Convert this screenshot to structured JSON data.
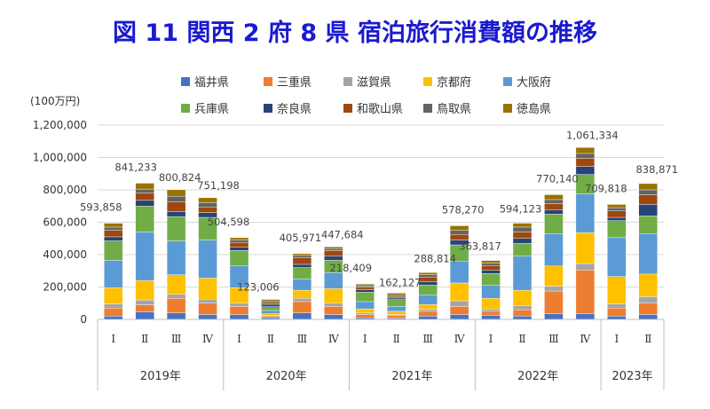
{
  "title": "図 11  関西 2 府 8 県 宿泊旅行消費額の推移",
  "colors": {
    "title": "#1a1ad0",
    "series": [
      "#4472c4",
      "#ed7d31",
      "#a5a5a5",
      "#ffc000",
      "#5b9bd5",
      "#70ad47",
      "#264478",
      "#9e480e",
      "#636363",
      "#997300"
    ]
  },
  "chart_data": {
    "type": "bar",
    "stacked": true,
    "title": "図 11  関西 2 府 8 県 宿泊旅行消費額の推移",
    "ylabel": "(100万円)",
    "ylim": [
      0,
      1200000
    ],
    "yticks": [
      "0",
      "200,000",
      "400,000",
      "600,000",
      "800,000",
      "1,000,000",
      "1,200,000"
    ],
    "ytick_values": [
      0,
      200000,
      400000,
      600000,
      800000,
      1000000,
      1200000
    ],
    "grid": true,
    "legend_position": "top",
    "categories": [
      "Ⅰ",
      "Ⅱ",
      "Ⅲ",
      "Ⅳ",
      "Ⅰ",
      "Ⅱ",
      "Ⅲ",
      "Ⅳ",
      "Ⅰ",
      "Ⅱ",
      "Ⅲ",
      "Ⅳ",
      "Ⅰ",
      "Ⅱ",
      "Ⅲ",
      "Ⅳ",
      "Ⅰ",
      "Ⅱ"
    ],
    "groups": [
      {
        "label": "2019年",
        "count": 4
      },
      {
        "label": "2020年",
        "count": 4
      },
      {
        "label": "2021年",
        "count": 4
      },
      {
        "label": "2022年",
        "count": 4
      },
      {
        "label": "2023年",
        "count": 2
      }
    ],
    "totals": [
      593858,
      841233,
      800824,
      751198,
      504598,
      123006,
      405971,
      447684,
      218409,
      162127,
      288814,
      578270,
      363817,
      594123,
      770140,
      1061334,
      709818,
      838871
    ],
    "total_labels": [
      "593,858",
      "841,233",
      "800,824",
      "751,198",
      "504,598",
      "123,006",
      "405,971",
      "447,684",
      "218,409",
      "162,127",
      "288,814",
      "578,270",
      "363,817",
      "594,123",
      "770,140",
      "1,061,334",
      "709,818",
      "838,871"
    ],
    "series": [
      {
        "name": "福井県",
        "values": [
          20000,
          45000,
          40000,
          30000,
          30000,
          10000,
          40000,
          30000,
          10000,
          8000,
          20000,
          30000,
          25000,
          20000,
          35000,
          35000,
          20000,
          30000
        ]
      },
      {
        "name": "三重県",
        "values": [
          50000,
          45000,
          90000,
          70000,
          50000,
          10000,
          70000,
          50000,
          20000,
          15000,
          30000,
          50000,
          25000,
          40000,
          140000,
          270000,
          50000,
          70000
        ]
      },
      {
        "name": "滋賀県",
        "values": [
          25000,
          30000,
          25000,
          25000,
          20000,
          5000,
          20000,
          20000,
          10000,
          7000,
          12000,
          35000,
          15000,
          25000,
          30000,
          40000,
          25000,
          40000
        ]
      },
      {
        "name": "京都府",
        "values": [
          100000,
          120000,
          120000,
          130000,
          95000,
          10000,
          50000,
          90000,
          25000,
          20000,
          30000,
          110000,
          65000,
          95000,
          125000,
          190000,
          170000,
          140000
        ]
      },
      {
        "name": "大阪府",
        "values": [
          170000,
          300000,
          210000,
          235000,
          135000,
          20000,
          70000,
          100000,
          45000,
          30000,
          60000,
          135000,
          80000,
          210000,
          200000,
          240000,
          240000,
          250000
        ]
      },
      {
        "name": "兵庫県",
        "values": [
          120000,
          160000,
          150000,
          140000,
          95000,
          23000,
          70000,
          75000,
          58000,
          42000,
          60000,
          100000,
          73000,
          80000,
          120000,
          120000,
          105000,
          110000
        ]
      },
      {
        "name": "奈良県",
        "values": [
          25000,
          35000,
          30000,
          30000,
          20000,
          15000,
          20000,
          25000,
          15000,
          10000,
          20000,
          30000,
          20000,
          30000,
          25000,
          50000,
          20000,
          70000
        ]
      },
      {
        "name": "和歌山県",
        "values": [
          40000,
          45000,
          60000,
          35000,
          30000,
          10000,
          40000,
          35000,
          15000,
          10000,
          30000,
          35000,
          30000,
          40000,
          40000,
          50000,
          40000,
          60000
        ]
      },
      {
        "name": "鳥取県",
        "values": [
          20000,
          25000,
          35000,
          26000,
          15000,
          10000,
          15000,
          12000,
          10000,
          10000,
          14000,
          25000,
          15000,
          30000,
          25000,
          30000,
          20000,
          30000
        ]
      },
      {
        "name": "徳島県",
        "values": [
          23858,
          36233,
          40824,
          30198,
          14598,
          10006,
          10971,
          10684,
          10409,
          10127,
          12814,
          28270,
          15817,
          24123,
          30140,
          36334,
          19818,
          38871
        ]
      }
    ]
  }
}
